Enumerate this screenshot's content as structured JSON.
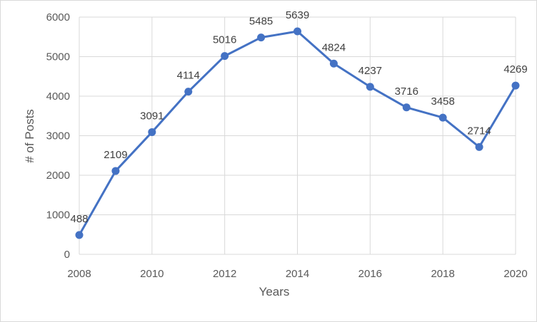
{
  "chart_data": {
    "type": "line",
    "title": "",
    "xlabel": "Years",
    "ylabel": "# of Posts",
    "x": [
      2008,
      2009,
      2010,
      2011,
      2012,
      2013,
      2014,
      2015,
      2016,
      2017,
      2018,
      2019,
      2020
    ],
    "series": [
      {
        "name": "",
        "values": [
          488,
          2109,
          3091,
          4114,
          5016,
          5485,
          5639,
          4824,
          4237,
          3716,
          3458,
          2714,
          4269
        ]
      }
    ],
    "x_ticks": [
      "2008",
      "2010",
      "2012",
      "2014",
      "2016",
      "2018",
      "2020"
    ],
    "y_ticks": [
      "0",
      "1000",
      "2000",
      "3000",
      "4000",
      "5000",
      "6000"
    ],
    "xlim": [
      2008,
      2020
    ],
    "ylim": [
      0,
      6000
    ],
    "grid": true,
    "data_labels": true,
    "markers": "circle",
    "colors": {
      "series": "#4472C4",
      "grid": "#d9d9d9",
      "text": "#595959"
    }
  }
}
